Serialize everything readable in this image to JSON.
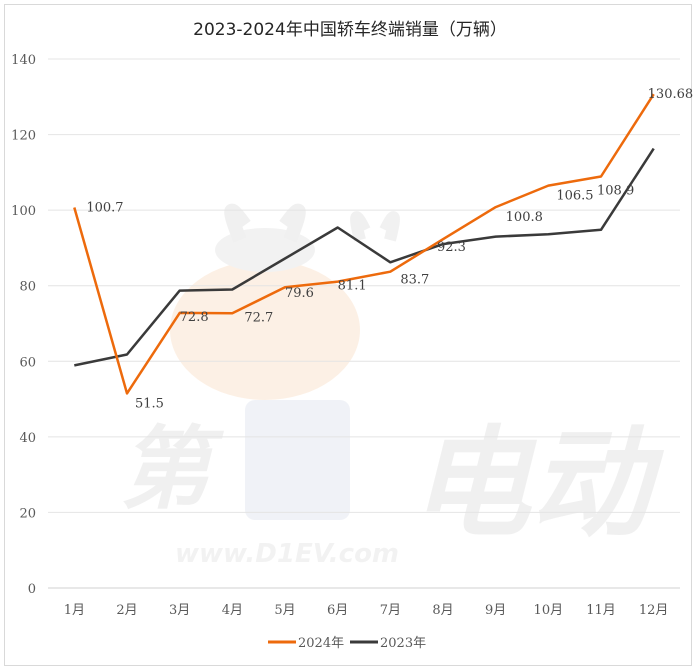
{
  "chart_data": {
    "type": "line",
    "title": "2023-2024年中国轿车终端销量（万辆）",
    "xlabel": "",
    "ylabel": "",
    "ylim": [
      0,
      140
    ],
    "yticks": [
      0,
      20,
      40,
      60,
      80,
      100,
      120,
      140
    ],
    "categories": [
      "1月",
      "2月",
      "3月",
      "4月",
      "5月",
      "6月",
      "7月",
      "8月",
      "9月",
      "10月",
      "11月",
      "12月"
    ],
    "series": [
      {
        "name": "2024年",
        "color": "#ED6A0C",
        "values": [
          100.7,
          51.5,
          72.8,
          72.7,
          79.6,
          81.1,
          83.7,
          92.3,
          100.8,
          106.5,
          108.9,
          130.68
        ],
        "labels": [
          "100.7",
          "51.5",
          "72.8",
          "72.7",
          "79.6",
          "81.1",
          "83.7",
          "92.3",
          "100.8",
          "106.5",
          "108.9",
          "130.68"
        ]
      },
      {
        "name": "2023年",
        "color": "#3A3A3A",
        "values": [
          58.9,
          61.8,
          78.7,
          79.0,
          87.2,
          95.4,
          86.2,
          91.0,
          93.0,
          93.6,
          94.8,
          116.3
        ]
      }
    ],
    "grid": true,
    "legend_position": "bottom",
    "watermark": "第1电动 www.D1EV.com"
  }
}
